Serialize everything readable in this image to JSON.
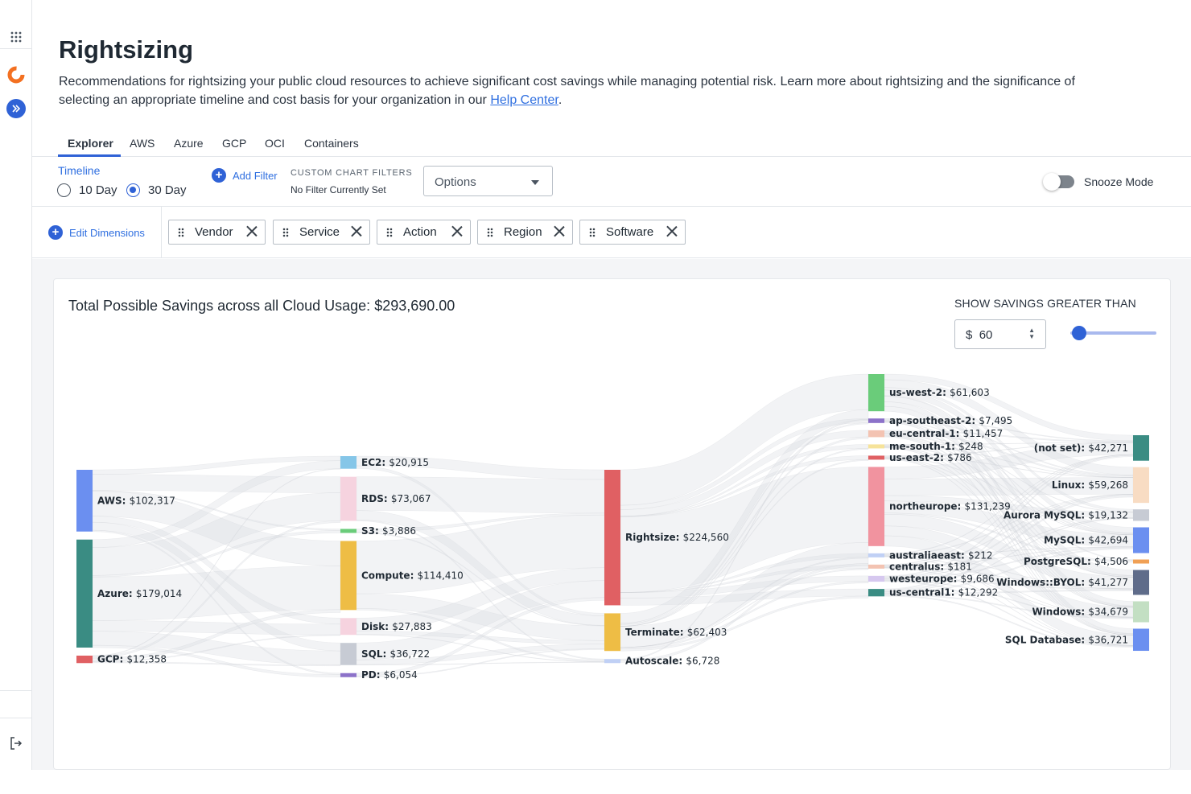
{
  "rail": {
    "icons": [
      "apps-grid-icon",
      "logo-icon",
      "expand-icon",
      "logout-icon"
    ]
  },
  "page": {
    "title": "Rightsizing",
    "description_pre": "Recommendations for rightsizing your public cloud resources to achieve significant cost savings while managing potential risk. Learn more about rightsizing and the significance of selecting an appropriate timeline and cost basis for your organization in our ",
    "help_link": "Help Center",
    "description_post": "."
  },
  "tabs": [
    "Explorer",
    "AWS",
    "Azure",
    "GCP",
    "OCI",
    "Containers"
  ],
  "filters": {
    "timeline_label": "Timeline",
    "option_10": "10 Day",
    "option_30": "30 Day",
    "add_filter": "Add Filter",
    "custom_title": "CUSTOM CHART FILTERS",
    "custom_status": "No Filter Currently Set",
    "options_placeholder": "Options",
    "snooze_label": "Snooze Mode"
  },
  "dimensions": {
    "edit_label": "Edit Dimensions",
    "chips": [
      "Vendor",
      "Service",
      "Action",
      "Region",
      "Software"
    ]
  },
  "chart": {
    "title": "Total Possible Savings across all Cloud Usage: $293,690.00",
    "threshold_label": "SHOW SAVINGS GREATER THAN",
    "currency": "$",
    "threshold_value": "60",
    "slider_fraction": 0.1
  },
  "chart_data": {
    "type": "sankey",
    "total": 293690.0,
    "columns": {
      "vendor": [
        {
          "name": "AWS",
          "value": 102317,
          "color": "#6b8ff0"
        },
        {
          "name": "Azure",
          "value": 179014,
          "color": "#3a8c83"
        },
        {
          "name": "GCP",
          "value": 12358,
          "color": "#e06063"
        }
      ],
      "service": [
        {
          "name": "EC2",
          "value": 20915,
          "color": "#85c6e8"
        },
        {
          "name": "RDS",
          "value": 73067,
          "color": "#f6d3df"
        },
        {
          "name": "S3",
          "value": 3886,
          "color": "#6acc7a"
        },
        {
          "name": "Compute",
          "value": 114410,
          "color": "#eebd45"
        },
        {
          "name": "Disk",
          "value": 27883,
          "color": "#f6d3df"
        },
        {
          "name": "SQL",
          "value": 36722,
          "color": "#c7cbd4"
        },
        {
          "name": "PD",
          "value": 6054,
          "color": "#8c72c9"
        }
      ],
      "action": [
        {
          "name": "Rightsize",
          "value": 224560,
          "color": "#e06063"
        },
        {
          "name": "Terminate",
          "value": 62403,
          "color": "#eebd45"
        },
        {
          "name": "Autoscale",
          "value": 6728,
          "color": "#c0d0f5"
        }
      ],
      "region": [
        {
          "name": "us-west-2",
          "value": 61603,
          "color": "#6acc7a"
        },
        {
          "name": "ap-southeast-2",
          "value": 7495,
          "color": "#8c72c9"
        },
        {
          "name": "eu-central-1",
          "value": 11457,
          "color": "#f3c3b2"
        },
        {
          "name": "me-south-1",
          "value": 248,
          "color": "#f6e39a"
        },
        {
          "name": "us-east-2",
          "value": 786,
          "color": "#e06063"
        },
        {
          "name": "northeurope",
          "value": 131239,
          "color": "#f1939f"
        },
        {
          "name": "australiaeast",
          "value": 212,
          "color": "#c0d0f5"
        },
        {
          "name": "centralus",
          "value": 181,
          "color": "#f3c3b2"
        },
        {
          "name": "westeurope",
          "value": 9686,
          "color": "#d6c8ef"
        },
        {
          "name": "us-central1",
          "value": 12292,
          "color": "#3a8c83"
        }
      ],
      "software": [
        {
          "name": "(not set)",
          "value": 42271,
          "color": "#3a8c83"
        },
        {
          "name": "Linux",
          "value": 59268,
          "color": "#f8dcc3"
        },
        {
          "name": "Aurora MySQL",
          "value": 19132,
          "color": "#c7cbd4"
        },
        {
          "name": "MySQL",
          "value": 42694,
          "color": "#6b8ff0"
        },
        {
          "name": "PostgreSQL",
          "value": 4506,
          "color": "#f0a055"
        },
        {
          "name": "Windows::BYOL",
          "value": 41277,
          "color": "#5f6c8a"
        },
        {
          "name": "Windows",
          "value": 34679,
          "color": "#c3dfc3"
        },
        {
          "name": "SQL Database",
          "value": 36721,
          "color": "#6b8ff0"
        }
      ]
    }
  }
}
